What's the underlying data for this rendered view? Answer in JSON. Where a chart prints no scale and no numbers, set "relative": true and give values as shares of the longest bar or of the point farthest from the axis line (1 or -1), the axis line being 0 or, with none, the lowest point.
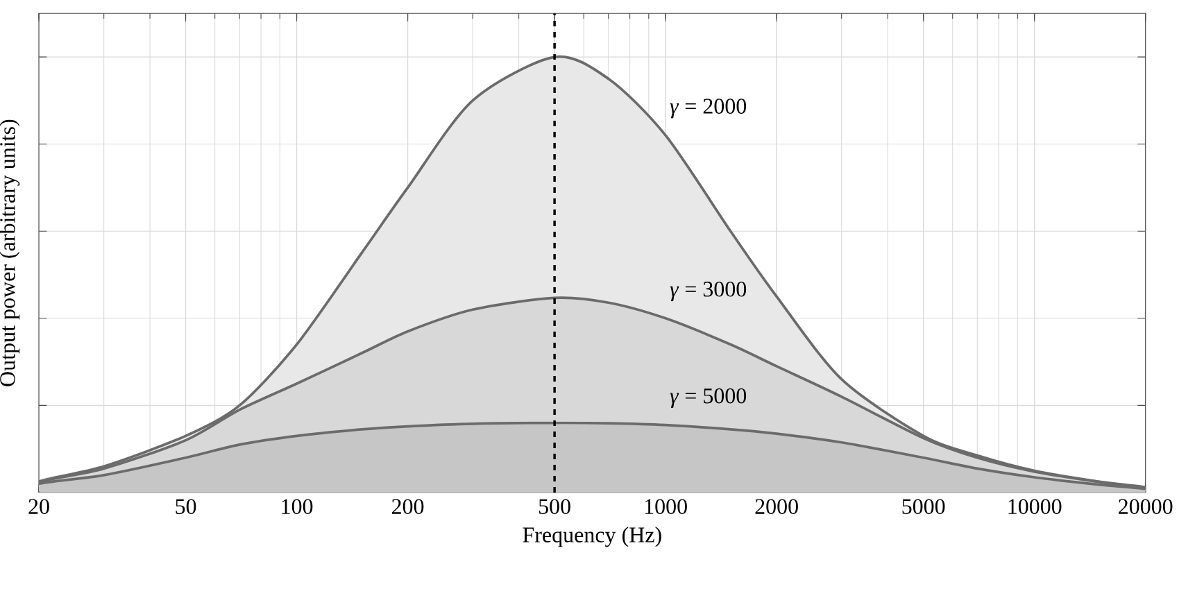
{
  "chart_data": {
    "type": "area",
    "relative": true,
    "xlabel": "Frequency (Hz)",
    "ylabel": "Output power (arbitrary units)",
    "log": "x",
    "grid": true,
    "legend": false,
    "x": [
      20,
      30,
      50,
      70,
      100,
      150,
      200,
      300,
      500,
      700,
      1000,
      1500,
      2000,
      3000,
      5000,
      7000,
      10000,
      15000,
      20000
    ],
    "xlim": [
      20,
      20000
    ],
    "xticks": [
      20,
      50,
      100,
      200,
      500,
      1000,
      2000,
      5000,
      10000,
      20000
    ],
    "series": [
      {
        "name": "*γ* = 2000",
        "color": "#e8e8e8",
        "values": [
          0.025,
          0.06,
          0.13,
          0.2,
          0.34,
          0.55,
          0.7,
          0.9,
          1,
          0.95,
          0.82,
          0.6,
          0.45,
          0.26,
          0.13,
          0.085,
          0.05,
          0.025,
          0.012
        ]
      },
      {
        "name": "*γ* = 3000",
        "color": "#d8d8d8",
        "values": [
          0.024,
          0.055,
          0.12,
          0.19,
          0.25,
          0.32,
          0.37,
          0.42,
          0.447,
          0.436,
          0.4,
          0.34,
          0.29,
          0.22,
          0.125,
          0.08,
          0.048,
          0.024,
          0.011
        ]
      },
      {
        "name": "*γ* = 5000",
        "color": "#c6c6c6",
        "values": [
          0.02,
          0.04,
          0.08,
          0.11,
          0.13,
          0.145,
          0.152,
          0.158,
          0.16,
          0.159,
          0.155,
          0.145,
          0.135,
          0.115,
          0.08,
          0.055,
          0.035,
          0.018,
          0.008
        ]
      }
    ],
    "ref_lines": [
      {
        "axis": "x",
        "value": 500,
        "line_style": "dashed",
        "color": "#000000"
      }
    ]
  }
}
